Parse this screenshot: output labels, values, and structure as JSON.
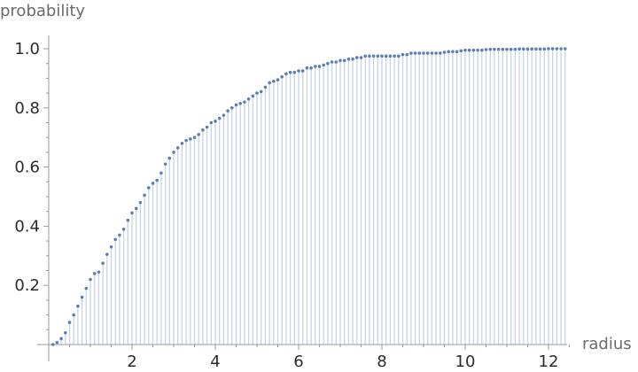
{
  "chart_data": {
    "type": "scatter",
    "style": "points with vertical drop-lines to the x-axis",
    "xlabel": "radius",
    "ylabel": "probability",
    "xlim": [
      0,
      12.5
    ],
    "ylim": [
      0,
      1.05
    ],
    "x_ticks": [
      "2",
      "4",
      "6",
      "8",
      "10",
      "12"
    ],
    "y_ticks": [
      "0.2",
      "0.4",
      "0.6",
      "0.8",
      "1.0"
    ],
    "grid": false,
    "point_color": "#5b7fb5",
    "dropline_color": "#c7d3e6",
    "x_start": 0.1,
    "x_step": 0.1,
    "values": [
      0.0,
      0.007,
      0.02,
      0.04,
      0.075,
      0.1,
      0.13,
      0.16,
      0.19,
      0.22,
      0.24,
      0.245,
      0.275,
      0.305,
      0.33,
      0.355,
      0.37,
      0.39,
      0.42,
      0.445,
      0.46,
      0.48,
      0.505,
      0.53,
      0.545,
      0.555,
      0.58,
      0.61,
      0.63,
      0.65,
      0.665,
      0.68,
      0.69,
      0.695,
      0.7,
      0.71,
      0.725,
      0.735,
      0.75,
      0.755,
      0.765,
      0.775,
      0.79,
      0.8,
      0.81,
      0.815,
      0.82,
      0.83,
      0.84,
      0.85,
      0.855,
      0.87,
      0.885,
      0.89,
      0.895,
      0.905,
      0.915,
      0.92,
      0.92,
      0.925,
      0.925,
      0.935,
      0.935,
      0.94,
      0.94,
      0.945,
      0.95,
      0.955,
      0.955,
      0.96,
      0.96,
      0.965,
      0.965,
      0.97,
      0.97,
      0.975,
      0.975,
      0.975,
      0.975,
      0.975,
      0.975,
      0.975,
      0.975,
      0.975,
      0.98,
      0.98,
      0.985,
      0.985,
      0.985,
      0.985,
      0.985,
      0.985,
      0.985,
      0.985,
      0.988,
      0.99,
      0.99,
      0.99,
      0.993,
      0.995,
      0.995,
      0.995,
      0.995,
      0.995,
      0.997,
      0.998,
      0.998,
      0.998,
      0.998,
      0.998,
      0.998,
      0.998,
      0.999,
      0.999,
      0.999,
      0.999,
      0.999,
      0.999,
      0.999,
      1.0,
      1.0,
      1.0,
      1.0,
      1.0
    ]
  }
}
